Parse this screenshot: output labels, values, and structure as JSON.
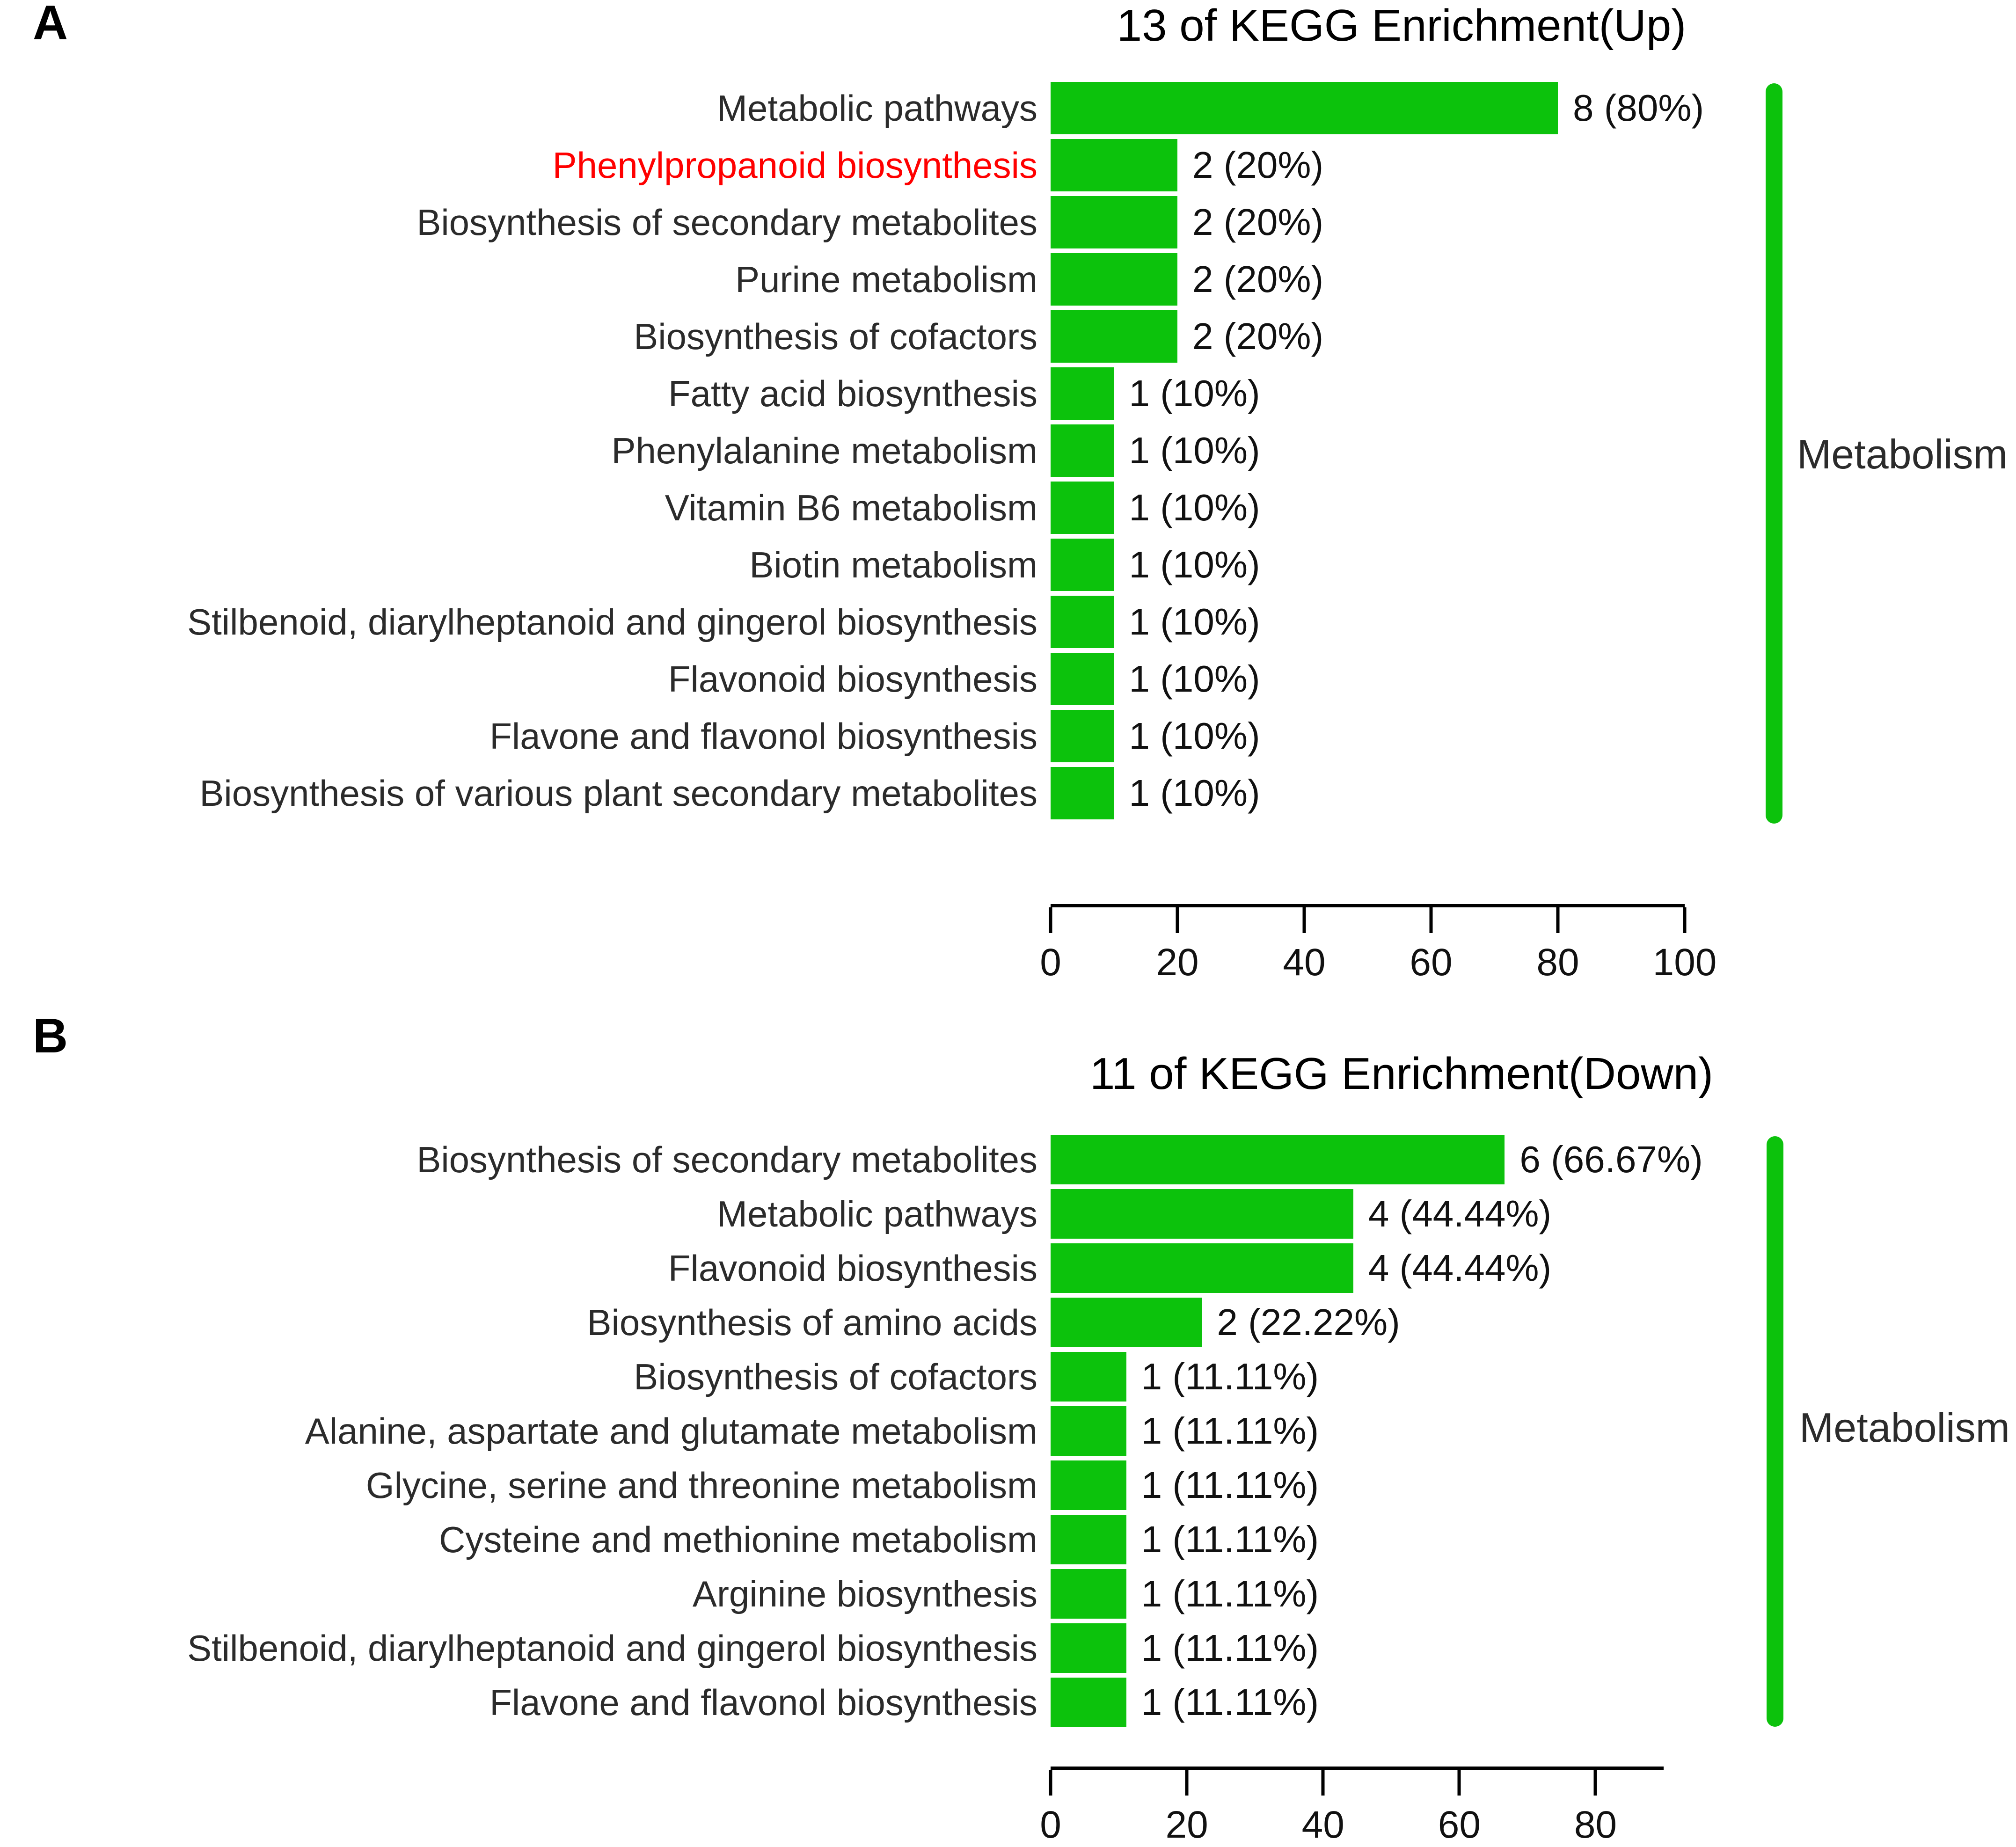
{
  "colors": {
    "bar_green": "#0cc20c",
    "bracket_green": "#0cc20c",
    "highlight_red": "#ff0000",
    "axis_black": "#000000"
  },
  "chart_data": [
    {
      "type": "bar",
      "orientation": "horizontal",
      "panel_letter": "A",
      "title": "13 of KEGG Enrichment(Up)",
      "categories": [
        "Metabolic pathways",
        "Phenylpropanoid biosynthesis",
        "Biosynthesis of secondary metabolites",
        "Purine metabolism",
        "Biosynthesis of cofactors",
        "Fatty acid biosynthesis",
        "Phenylalanine metabolism",
        "Vitamin B6 metabolism",
        "Biotin metabolism",
        "Stilbenoid, diarylheptanoid and gingerol biosynthesis",
        "Flavonoid biosynthesis",
        "Flavone and flavonol biosynthesis",
        "Biosynthesis of various plant secondary metabolites"
      ],
      "counts": [
        8,
        2,
        2,
        2,
        2,
        1,
        1,
        1,
        1,
        1,
        1,
        1,
        1
      ],
      "values": [
        80,
        20,
        20,
        20,
        20,
        10,
        10,
        10,
        10,
        10,
        10,
        10,
        10
      ],
      "bar_labels": [
        "8 (80%)",
        "2 (20%)",
        "2 (20%)",
        "2 (20%)",
        "2 (20%)",
        "1 (10%)",
        "1 (10%)",
        "1 (10%)",
        "1 (10%)",
        "1 (10%)",
        "1 (10%)",
        "1 (10%)",
        "1 (10%)"
      ],
      "highlighted_category": "Phenylpropanoid biosynthesis",
      "xlabel": "",
      "ylabel": "",
      "xlim": [
        0,
        100
      ],
      "x_ticks": [
        0,
        20,
        40,
        60,
        80,
        100
      ],
      "axis_line_max": 100,
      "grid": false,
      "group_label": "Metabolism",
      "bar_color": "#0cc20c"
    },
    {
      "type": "bar",
      "orientation": "horizontal",
      "panel_letter": "B",
      "title": "11 of KEGG Enrichment(Down)",
      "categories": [
        "Biosynthesis of secondary metabolites",
        "Metabolic pathways",
        "Flavonoid biosynthesis",
        "Biosynthesis of amino acids",
        "Biosynthesis of cofactors",
        "Alanine, aspartate and glutamate metabolism",
        "Glycine, serine and threonine metabolism",
        "Cysteine and methionine metabolism",
        "Arginine biosynthesis",
        "Stilbenoid, diarylheptanoid and gingerol biosynthesis",
        "Flavone and flavonol biosynthesis"
      ],
      "counts": [
        6,
        4,
        4,
        2,
        1,
        1,
        1,
        1,
        1,
        1,
        1
      ],
      "values": [
        66.67,
        44.44,
        44.44,
        22.22,
        11.11,
        11.11,
        11.11,
        11.11,
        11.11,
        11.11,
        11.11
      ],
      "bar_labels": [
        "6 (66.67%)",
        "4 (44.44%)",
        "4 (44.44%)",
        "2 (22.22%)",
        "1 (11.11%)",
        "1 (11.11%)",
        "1 (11.11%)",
        "1 (11.11%)",
        "1 (11.11%)",
        "1 (11.11%)",
        "1 (11.11%)"
      ],
      "highlighted_category": null,
      "xlabel": "",
      "ylabel": "",
      "xlim": [
        0,
        90
      ],
      "x_ticks": [
        0,
        20,
        40,
        60,
        80
      ],
      "axis_line_max": 90,
      "grid": false,
      "group_label": "Metabolism",
      "bar_color": "#0cc20c"
    }
  ]
}
